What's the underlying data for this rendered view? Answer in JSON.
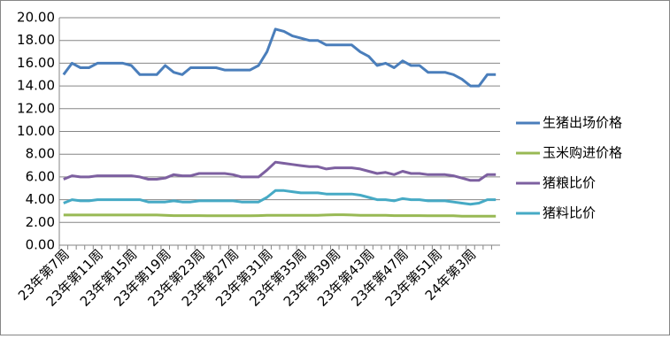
{
  "chart_data": {
    "type": "line",
    "categories": [
      "23年第7周",
      null,
      null,
      null,
      "23年第11周",
      null,
      null,
      null,
      "23年第15周",
      null,
      null,
      null,
      "23年第19周",
      null,
      null,
      null,
      "23年第23周",
      null,
      null,
      null,
      "23年第27周",
      null,
      null,
      null,
      "23年第31周",
      null,
      null,
      null,
      "23年第35周",
      null,
      null,
      null,
      "23年第39周",
      null,
      null,
      null,
      "23年第43周",
      null,
      null,
      null,
      "23年第47周",
      null,
      null,
      null,
      "23年第51周",
      null,
      null,
      null,
      "24年第3周",
      null,
      null,
      null
    ],
    "series": [
      {
        "name": "生猪出场价格",
        "color": "#4a7ebb",
        "values": [
          15.0,
          16.0,
          15.6,
          15.6,
          16.0,
          16.0,
          16.0,
          16.0,
          15.8,
          15.0,
          15.0,
          15.0,
          15.8,
          15.2,
          15.0,
          15.6,
          15.6,
          15.6,
          15.6,
          15.4,
          15.4,
          15.4,
          15.4,
          15.8,
          17.0,
          19.0,
          18.8,
          18.4,
          18.2,
          18.0,
          18.0,
          17.6,
          17.6,
          17.6,
          17.6,
          17.0,
          16.6,
          15.8,
          16.0,
          15.6,
          16.2,
          15.8,
          15.8,
          15.2,
          15.2,
          15.2,
          15.0,
          14.6,
          14.0,
          14.0,
          15.0,
          15.0
        ]
      },
      {
        "name": "玉米购进价格",
        "color": "#98b954",
        "values": [
          2.65,
          2.65,
          2.65,
          2.65,
          2.65,
          2.65,
          2.65,
          2.65,
          2.65,
          2.65,
          2.65,
          2.65,
          2.63,
          2.6,
          2.6,
          2.6,
          2.6,
          2.58,
          2.58,
          2.58,
          2.58,
          2.58,
          2.58,
          2.6,
          2.62,
          2.62,
          2.62,
          2.63,
          2.63,
          2.63,
          2.63,
          2.65,
          2.68,
          2.68,
          2.65,
          2.63,
          2.63,
          2.63,
          2.63,
          2.6,
          2.6,
          2.6,
          2.6,
          2.58,
          2.58,
          2.58,
          2.58,
          2.55,
          2.55,
          2.55,
          2.55,
          2.55
        ]
      },
      {
        "name": "猪粮比价",
        "color": "#7d60a0",
        "values": [
          5.8,
          6.1,
          6.0,
          6.0,
          6.1,
          6.1,
          6.1,
          6.1,
          6.1,
          6.0,
          5.8,
          5.8,
          5.9,
          6.2,
          6.1,
          6.1,
          6.3,
          6.3,
          6.3,
          6.3,
          6.2,
          6.0,
          6.0,
          6.0,
          6.6,
          7.3,
          7.2,
          7.1,
          7.0,
          6.9,
          6.9,
          6.7,
          6.8,
          6.8,
          6.8,
          6.7,
          6.5,
          6.3,
          6.4,
          6.2,
          6.5,
          6.3,
          6.3,
          6.2,
          6.2,
          6.2,
          6.1,
          5.9,
          5.7,
          5.7,
          6.2,
          6.2
        ]
      },
      {
        "name": "猪料比价",
        "color": "#46aac5",
        "values": [
          3.7,
          4.0,
          3.9,
          3.9,
          4.0,
          4.0,
          4.0,
          4.0,
          4.0,
          4.0,
          3.8,
          3.8,
          3.8,
          3.9,
          3.8,
          3.8,
          3.9,
          3.9,
          3.9,
          3.9,
          3.9,
          3.8,
          3.8,
          3.8,
          4.2,
          4.8,
          4.8,
          4.7,
          4.6,
          4.6,
          4.6,
          4.5,
          4.5,
          4.5,
          4.5,
          4.4,
          4.2,
          4.0,
          4.0,
          3.9,
          4.1,
          4.0,
          4.0,
          3.9,
          3.9,
          3.9,
          3.8,
          3.7,
          3.6,
          3.7,
          4.0,
          4.0
        ]
      }
    ],
    "ylim": [
      0,
      20
    ],
    "yticks": [
      {
        "value": 0,
        "label": "0.00"
      },
      {
        "value": 2,
        "label": "2.00"
      },
      {
        "value": 4,
        "label": "4.00"
      },
      {
        "value": 6,
        "label": "6.00"
      },
      {
        "value": 8,
        "label": "8.00"
      },
      {
        "value": 10,
        "label": "10.00"
      },
      {
        "value": 12,
        "label": "12.00"
      },
      {
        "value": 14,
        "label": "14.00"
      },
      {
        "value": 16,
        "label": "16.00"
      },
      {
        "value": 18,
        "label": "18.00"
      },
      {
        "value": 20,
        "label": "20.00"
      }
    ],
    "grid": true,
    "legend": "right"
  }
}
